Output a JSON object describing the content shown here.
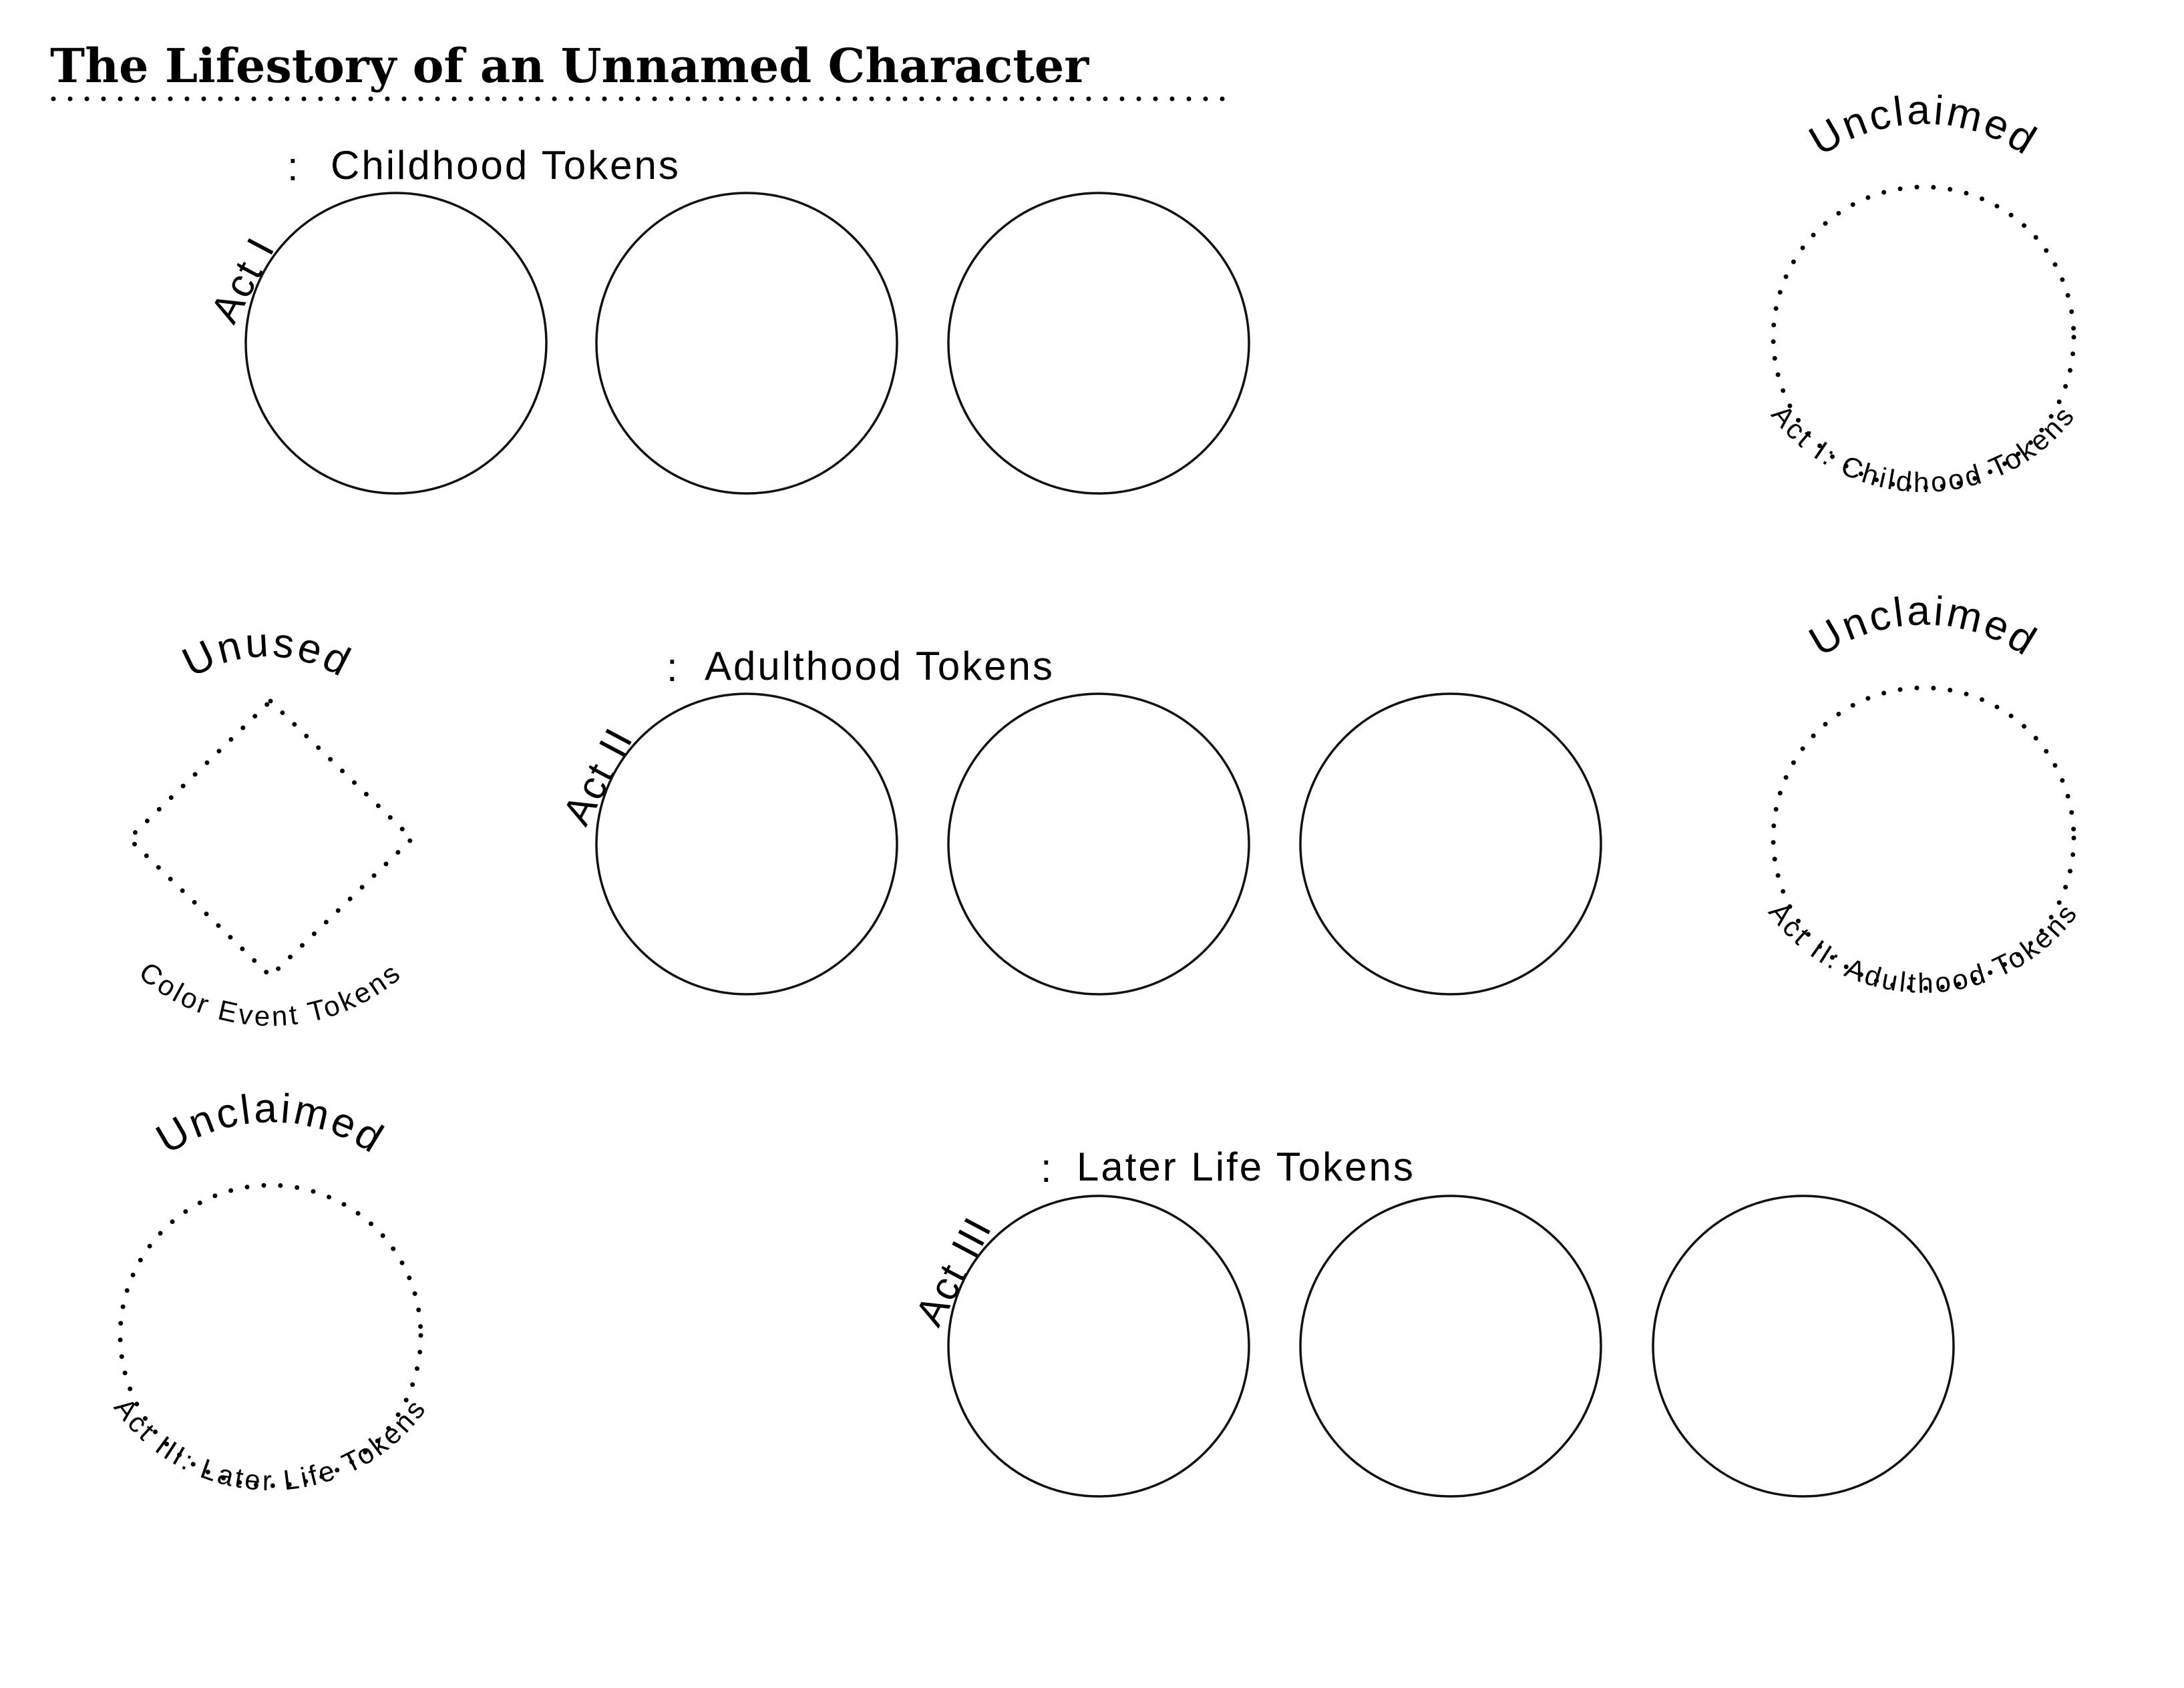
{
  "title": "The Lifestory of an Unnamed Character",
  "acts": [
    {
      "act_label": "Act I",
      "separator": ":",
      "heading": "Childhood Tokens",
      "slots": 3
    },
    {
      "act_label": "Act II",
      "separator": ":",
      "heading": "Adulthood Tokens",
      "slots": 3
    },
    {
      "act_label": "Act III",
      "separator": ":",
      "heading": "Later Life Tokens",
      "slots": 3
    }
  ],
  "unused_area": {
    "top_label": "Unused",
    "bottom_label": "Color Event Tokens"
  },
  "unclaimed_areas": [
    {
      "top_label": "Unclaimed",
      "bottom_label": "Act I: Childhood Tokens"
    },
    {
      "top_label": "Unclaimed",
      "bottom_label": "Act II: Adulthood Tokens"
    },
    {
      "top_label": "Unclaimed",
      "bottom_label": "Act III: Later Life Tokens"
    }
  ]
}
